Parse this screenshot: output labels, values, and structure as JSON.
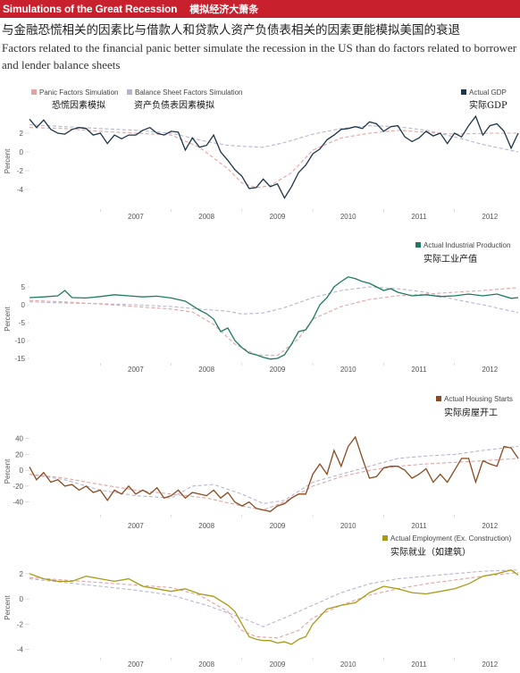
{
  "header": {
    "title_en": "Simulations of the Great Recession",
    "title_zh": "模拟经济大萧条"
  },
  "subtitle_zh": "与金融恐慌相关的因素比与借款人和贷款人资产负债表相关的因素更能模拟美国的衰退",
  "subtitle_en": "Factors related to the financial panic better simulate the recession in the US than do factors related to borrower and lender balance sheets",
  "legend": {
    "panic": "Panic Factors Simulation",
    "panic_zh": "恐慌因素模拟",
    "balance": "Balance Sheet Factors Simulation",
    "balance_zh": "资产负债表因素模拟"
  },
  "colors": {
    "panic": "#e3a3a3",
    "balance": "#b5b5d0",
    "gdp": "#1d3549",
    "industrial": "#1f7a62",
    "housing": "#8a4a1f",
    "employment": "#a89a16",
    "banner": "#c8202d"
  },
  "chart_data": [
    {
      "type": "line",
      "actual_label": "Actual GDP",
      "actual_label_zh": "实际GDP",
      "ylabel": "Percent",
      "ylim": [
        -6,
        4
      ],
      "yticks": [
        -4,
        -2,
        0,
        2
      ],
      "xticks": [
        "2007",
        "2008",
        "2009",
        "2010",
        "2011",
        "2012"
      ],
      "xrange": [
        2006.0,
        2012.9
      ],
      "series": [
        {
          "key": "actual",
          "x": [
            2006.0,
            2006.1,
            2006.2,
            2006.3,
            2006.4,
            2006.5,
            2006.6,
            2006.7,
            2006.8,
            2006.9,
            2007.0,
            2007.1,
            2007.2,
            2007.3,
            2007.4,
            2007.5,
            2007.6,
            2007.7,
            2007.8,
            2007.9,
            2008.0,
            2008.1,
            2008.2,
            2008.3,
            2008.4,
            2008.5,
            2008.6,
            2008.7,
            2008.8,
            2008.9,
            2009.0,
            2009.1,
            2009.2,
            2009.3,
            2009.4,
            2009.5,
            2009.6,
            2009.7,
            2009.8,
            2009.9,
            2010.0,
            2010.1,
            2010.2,
            2010.3,
            2010.4,
            2010.5,
            2010.6,
            2010.7,
            2010.8,
            2010.9,
            2011.0,
            2011.1,
            2011.2,
            2011.3,
            2011.4,
            2011.5,
            2011.6,
            2011.7,
            2011.8,
            2011.9,
            2012.0,
            2012.1,
            2012.2,
            2012.3,
            2012.4,
            2012.5,
            2012.6,
            2012.7,
            2012.8,
            2012.9
          ],
          "y": [
            3.5,
            2.6,
            3.4,
            2.4,
            2.0,
            1.9,
            2.4,
            2.6,
            2.5,
            1.8,
            2.0,
            0.9,
            1.8,
            1.4,
            1.8,
            1.8,
            2.3,
            2.6,
            2.0,
            1.8,
            2.2,
            2.1,
            0.2,
            1.5,
            0.5,
            0.7,
            1.8,
            0.0,
            -0.9,
            -1.9,
            -2.6,
            -3.9,
            -3.8,
            -2.9,
            -3.7,
            -3.4,
            -4.9,
            -3.7,
            -2.2,
            -1.4,
            -0.2,
            0.3,
            1.3,
            1.8,
            2.4,
            2.5,
            2.7,
            2.5,
            3.2,
            3.0,
            2.2,
            2.7,
            2.8,
            1.6,
            1.1,
            1.5,
            2.2,
            1.7,
            2.0,
            0.9,
            2.0,
            1.6,
            2.8,
            3.8,
            1.8,
            2.8,
            3.0,
            2.2,
            0.4,
            2.0
          ]
        },
        {
          "key": "panic",
          "x": [
            2006.0,
            2006.5,
            2007.0,
            2007.5,
            2008.0,
            2008.4,
            2008.8,
            2009.0,
            2009.2,
            2009.4,
            2009.7,
            2010.0,
            2010.4,
            2010.8,
            2011.2,
            2011.6,
            2012.0,
            2012.5,
            2012.9
          ],
          "y": [
            2.6,
            2.5,
            2.2,
            2.0,
            1.8,
            0.5,
            -1.8,
            -3.3,
            -3.8,
            -3.6,
            -2.2,
            0.2,
            1.5,
            2.0,
            2.3,
            2.1,
            1.9,
            2.0,
            2.0
          ]
        },
        {
          "key": "balance",
          "x": [
            2006.0,
            2006.5,
            2007.0,
            2007.5,
            2008.0,
            2008.5,
            2008.8,
            2009.0,
            2009.3,
            2009.6,
            2010.0,
            2010.4,
            2010.8,
            2011.2,
            2011.6,
            2012.0,
            2012.4,
            2012.9
          ],
          "y": [
            2.9,
            2.7,
            2.5,
            2.3,
            2.0,
            1.1,
            0.7,
            0.6,
            0.5,
            1.0,
            1.9,
            2.5,
            2.8,
            2.7,
            2.3,
            1.6,
            0.8,
            0.0
          ]
        }
      ]
    },
    {
      "type": "line",
      "actual_label": "Actual Industrial Production",
      "actual_label_zh": "实际工业产值",
      "ylabel": "Percent",
      "ylim": [
        -16,
        8
      ],
      "yticks": [
        -15,
        -10,
        -5,
        0,
        5
      ],
      "xticks": [
        "2007",
        "2008",
        "2009",
        "2010",
        "2011",
        "2012"
      ],
      "xrange": [
        2006.0,
        2012.9
      ],
      "series": [
        {
          "key": "actual",
          "x": [
            2006.0,
            2006.2,
            2006.4,
            2006.5,
            2006.6,
            2006.8,
            2007.0,
            2007.2,
            2007.4,
            2007.6,
            2007.8,
            2008.0,
            2008.2,
            2008.4,
            2008.5,
            2008.6,
            2008.7,
            2008.8,
            2008.9,
            2009.0,
            2009.1,
            2009.2,
            2009.3,
            2009.4,
            2009.5,
            2009.6,
            2009.7,
            2009.8,
            2009.9,
            2010.0,
            2010.1,
            2010.2,
            2010.3,
            2010.4,
            2010.5,
            2010.6,
            2010.7,
            2010.8,
            2010.9,
            2011.0,
            2011.1,
            2011.2,
            2011.4,
            2011.6,
            2011.8,
            2012.0,
            2012.2,
            2012.4,
            2012.6,
            2012.8,
            2012.9
          ],
          "y": [
            2.0,
            2.2,
            2.5,
            4.0,
            2.0,
            1.9,
            2.3,
            2.8,
            2.5,
            2.2,
            2.4,
            1.9,
            1.0,
            -1.5,
            -2.5,
            -4.0,
            -7.5,
            -6.5,
            -10.0,
            -12.0,
            -13.5,
            -14.0,
            -14.7,
            -15.2,
            -15.0,
            -14.0,
            -11.0,
            -7.5,
            -7.0,
            -4.0,
            0.0,
            2.0,
            5.0,
            6.5,
            7.8,
            7.3,
            6.5,
            6.0,
            5.0,
            4.0,
            4.5,
            3.5,
            2.5,
            2.8,
            2.3,
            2.5,
            3.0,
            2.5,
            3.0,
            1.8,
            2.0
          ]
        },
        {
          "key": "panic",
          "x": [
            2006.0,
            2006.5,
            2007.0,
            2007.5,
            2008.0,
            2008.3,
            2008.6,
            2008.9,
            2009.2,
            2009.5,
            2009.8,
            2010.0,
            2010.4,
            2010.8,
            2011.2,
            2011.6,
            2012.0,
            2012.4,
            2012.9
          ],
          "y": [
            1.2,
            0.8,
            0.2,
            -0.5,
            -1.2,
            -2.0,
            -5.5,
            -11.0,
            -14.0,
            -14.2,
            -9.5,
            -4.0,
            -0.5,
            1.5,
            2.5,
            3.0,
            3.5,
            4.0,
            4.8
          ]
        },
        {
          "key": "balance",
          "x": [
            2006.0,
            2006.5,
            2007.0,
            2007.5,
            2008.0,
            2008.4,
            2008.8,
            2009.0,
            2009.3,
            2009.6,
            2010.0,
            2010.4,
            2010.8,
            2011.2,
            2011.6,
            2012.0,
            2012.4,
            2012.9
          ],
          "y": [
            0.8,
            0.5,
            0.3,
            0.0,
            -0.5,
            -1.2,
            -1.8,
            -2.6,
            -2.3,
            -0.8,
            2.0,
            4.0,
            5.0,
            4.5,
            3.5,
            1.5,
            0.0,
            -2.2
          ]
        }
      ]
    },
    {
      "type": "line",
      "actual_label": "Actual Housing Starts",
      "actual_label_zh": "实际房屋开工",
      "ylabel": "Percent",
      "ylim": [
        -55,
        52
      ],
      "yticks": [
        -40,
        -20,
        0,
        20,
        40
      ],
      "xticks": [
        "2007",
        "2008",
        "2009",
        "2010",
        "2011",
        "2012"
      ],
      "xrange": [
        2006.0,
        2012.9
      ],
      "series": [
        {
          "key": "actual",
          "x": [
            2006.0,
            2006.1,
            2006.2,
            2006.3,
            2006.4,
            2006.5,
            2006.6,
            2006.7,
            2006.8,
            2006.9,
            2007.0,
            2007.1,
            2007.2,
            2007.3,
            2007.4,
            2007.5,
            2007.6,
            2007.7,
            2007.8,
            2007.9,
            2008.0,
            2008.1,
            2008.2,
            2008.3,
            2008.4,
            2008.5,
            2008.6,
            2008.7,
            2008.8,
            2008.9,
            2009.0,
            2009.1,
            2009.2,
            2009.3,
            2009.4,
            2009.5,
            2009.6,
            2009.7,
            2009.8,
            2009.9,
            2010.0,
            2010.1,
            2010.2,
            2010.3,
            2010.4,
            2010.5,
            2010.6,
            2010.7,
            2010.8,
            2010.9,
            2011.0,
            2011.1,
            2011.2,
            2011.3,
            2011.4,
            2011.5,
            2011.6,
            2011.7,
            2011.8,
            2011.9,
            2012.0,
            2012.1,
            2012.2,
            2012.3,
            2012.4,
            2012.5,
            2012.6,
            2012.7,
            2012.8,
            2012.9
          ],
          "y": [
            4,
            -12,
            -3,
            -15,
            -12,
            -20,
            -18,
            -25,
            -20,
            -28,
            -25,
            -38,
            -25,
            -30,
            -20,
            -30,
            -25,
            -30,
            -22,
            -35,
            -32,
            -25,
            -35,
            -28,
            -30,
            -32,
            -25,
            -35,
            -28,
            -40,
            -45,
            -40,
            -48,
            -50,
            -52,
            -45,
            -42,
            -35,
            -30,
            -30,
            -5,
            8,
            -5,
            25,
            5,
            30,
            42,
            15,
            -10,
            -8,
            3,
            5,
            5,
            0,
            -10,
            -5,
            2,
            -15,
            -5,
            -15,
            0,
            15,
            15,
            -15,
            12,
            8,
            5,
            30,
            28,
            15
          ]
        },
        {
          "key": "panic",
          "x": [
            2006.0,
            2006.5,
            2007.0,
            2007.5,
            2008.0,
            2008.5,
            2009.0,
            2009.3,
            2009.6,
            2010.0,
            2010.4,
            2010.8,
            2011.2,
            2011.6,
            2012.0,
            2012.4,
            2012.9
          ],
          "y": [
            -5,
            -10,
            -18,
            -25,
            -30,
            -35,
            -45,
            -50,
            -40,
            -20,
            -8,
            0,
            5,
            8,
            10,
            12,
            15
          ]
        },
        {
          "key": "balance",
          "x": [
            2006.0,
            2006.5,
            2007.0,
            2007.5,
            2008.0,
            2008.3,
            2008.6,
            2009.0,
            2009.3,
            2009.6,
            2010.0,
            2010.4,
            2010.8,
            2011.2,
            2011.6,
            2012.0,
            2012.4,
            2012.9
          ],
          "y": [
            -5,
            -12,
            -25,
            -32,
            -35,
            -20,
            -18,
            -30,
            -42,
            -38,
            -15,
            -5,
            5,
            15,
            18,
            20,
            25,
            30
          ]
        }
      ]
    },
    {
      "type": "line",
      "actual_label": "Actual Employment (Ex. Construction)",
      "actual_label_zh": "实际就业（如建筑）",
      "ylabel": "Percent",
      "ylim": [
        -4.6,
        3.2
      ],
      "yticks": [
        -4,
        -2,
        0,
        2
      ],
      "xticks": [
        "2007",
        "2008",
        "2009",
        "2010",
        "2011",
        "2012"
      ],
      "xrange": [
        2006.0,
        2012.9
      ],
      "series": [
        {
          "key": "actual",
          "x": [
            2006.0,
            2006.2,
            2006.4,
            2006.6,
            2006.8,
            2007.0,
            2007.2,
            2007.4,
            2007.6,
            2007.8,
            2008.0,
            2008.2,
            2008.4,
            2008.6,
            2008.8,
            2008.9,
            2009.0,
            2009.1,
            2009.2,
            2009.3,
            2009.4,
            2009.5,
            2009.6,
            2009.7,
            2009.8,
            2009.9,
            2010.0,
            2010.2,
            2010.4,
            2010.6,
            2010.8,
            2011.0,
            2011.2,
            2011.4,
            2011.6,
            2011.8,
            2012.0,
            2012.2,
            2012.4,
            2012.6,
            2012.8,
            2012.9
          ],
          "y": [
            2.0,
            1.6,
            1.4,
            1.4,
            1.8,
            1.6,
            1.4,
            1.6,
            1.0,
            0.8,
            0.6,
            0.8,
            0.4,
            0.2,
            -0.5,
            -1.0,
            -2.0,
            -3.0,
            -3.2,
            -3.3,
            -3.3,
            -3.5,
            -3.4,
            -3.6,
            -3.2,
            -3.0,
            -2.0,
            -0.8,
            -0.5,
            -0.3,
            0.5,
            1.0,
            0.8,
            0.5,
            0.4,
            0.6,
            0.8,
            1.2,
            1.8,
            2.0,
            2.3,
            1.9
          ]
        },
        {
          "key": "panic",
          "x": [
            2006.0,
            2006.5,
            2007.0,
            2007.5,
            2008.0,
            2008.4,
            2008.8,
            2009.0,
            2009.2,
            2009.5,
            2009.8,
            2010.0,
            2010.4,
            2010.8,
            2011.2,
            2011.6,
            2012.0,
            2012.4,
            2012.9
          ],
          "y": [
            1.7,
            1.5,
            1.3,
            1.1,
            0.9,
            0.3,
            -1.0,
            -2.5,
            -3.0,
            -3.1,
            -2.5,
            -1.5,
            -0.5,
            0.3,
            0.8,
            1.2,
            1.5,
            1.8,
            2.1
          ]
        },
        {
          "key": "balance",
          "x": [
            2006.0,
            2006.5,
            2007.0,
            2007.5,
            2008.0,
            2008.5,
            2009.0,
            2009.3,
            2009.6,
            2010.0,
            2010.4,
            2010.8,
            2011.2,
            2011.6,
            2012.0,
            2012.4,
            2012.9
          ],
          "y": [
            1.6,
            1.3,
            1.0,
            0.7,
            0.3,
            -0.5,
            -1.5,
            -2.2,
            -1.5,
            -0.5,
            0.5,
            1.2,
            1.6,
            1.8,
            2.0,
            2.2,
            2.3
          ]
        }
      ]
    }
  ]
}
